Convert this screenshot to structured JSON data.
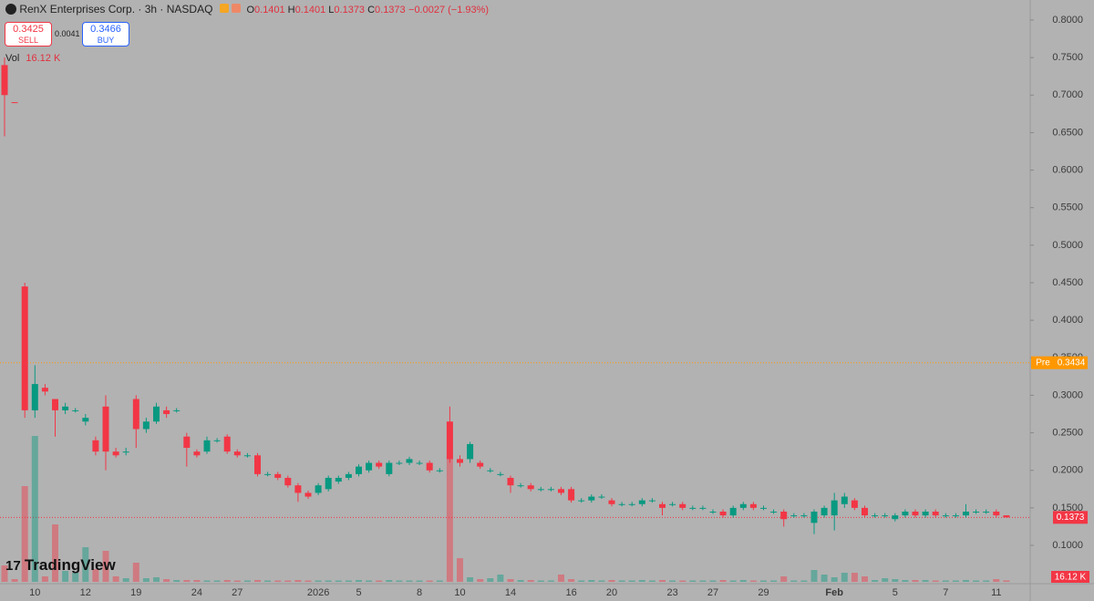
{
  "chart_data": {
    "type": "candlestick",
    "title": "RenX Enterprises Corp. · 3h · NASDAQ",
    "ohlc_legend": [
      {
        "label": "O",
        "value": 0.1401
      },
      {
        "label": "H",
        "value": 0.1401
      },
      {
        "label": "L",
        "value": 0.1373
      },
      {
        "label": "C",
        "value": 0.1373
      }
    ],
    "change_text": "−0.0027 (−1.93%)",
    "sell": {
      "price": 0.3425,
      "label": "SELL"
    },
    "spread": 0.0041,
    "buy": {
      "price": 0.3466,
      "label": "BUY"
    },
    "volume_title": "Vol",
    "volume_label": "16.12 K",
    "pre_label": "Pre",
    "pre_price": 0.3434,
    "last_price": 0.1373,
    "up_color": "#089981",
    "down_color": "#f23645",
    "pre_color": "#ff9800",
    "ylim": [
      0.049,
      0.8267
    ],
    "yticks": [
      {
        "value": 0.1,
        "label": "0.1000"
      },
      {
        "value": 0.15,
        "label": "0.1500"
      },
      {
        "value": 0.2,
        "label": "0.2000"
      },
      {
        "value": 0.25,
        "label": "0.2500"
      },
      {
        "value": 0.3,
        "label": "0.3000"
      },
      {
        "value": 0.35,
        "label": "0.3500"
      },
      {
        "value": 0.4,
        "label": "0.4000"
      },
      {
        "value": 0.45,
        "label": "0.4500"
      },
      {
        "value": 0.5,
        "label": "0.5000"
      },
      {
        "value": 0.55,
        "label": "0.5500"
      },
      {
        "value": 0.6,
        "label": "0.6000"
      },
      {
        "value": 0.65,
        "label": "0.6500"
      },
      {
        "value": 0.7,
        "label": "0.7000"
      },
      {
        "value": 0.75,
        "label": "0.7500"
      },
      {
        "value": 0.8,
        "label": "0.8000"
      }
    ],
    "volume_lim": [
      0,
      2000
    ],
    "grid": false,
    "categories": [
      null,
      null,
      null,
      "10",
      null,
      null,
      null,
      null,
      "12",
      null,
      null,
      null,
      null,
      "19",
      null,
      null,
      null,
      null,
      null,
      "24",
      null,
      null,
      null,
      "27",
      null,
      null,
      null,
      null,
      null,
      null,
      null,
      "2026",
      null,
      null,
      null,
      "5",
      null,
      null,
      null,
      null,
      null,
      "8",
      null,
      null,
      null,
      "10",
      null,
      null,
      null,
      null,
      "14",
      null,
      null,
      null,
      null,
      null,
      "16",
      null,
      null,
      null,
      "20",
      null,
      null,
      null,
      null,
      null,
      "23",
      null,
      null,
      null,
      "27",
      null,
      null,
      null,
      null,
      "29",
      null,
      null,
      null,
      null,
      null,
      null,
      "Feb",
      null,
      null,
      null,
      null,
      null,
      "5",
      null,
      null,
      null,
      null,
      "7",
      null,
      null,
      null,
      null,
      "11",
      null
    ],
    "open": [
      0.74,
      0.6905,
      0.445,
      0.28,
      0.31,
      0.295,
      0.28,
      0.28,
      0.265,
      0.24,
      0.285,
      0.225,
      0.225,
      0.295,
      0.255,
      0.265,
      0.28,
      0.28,
      0.245,
      0.225,
      0.225,
      0.24,
      0.245,
      0.225,
      0.22,
      0.22,
      0.195,
      0.195,
      0.19,
      0.18,
      0.17,
      0.17,
      0.175,
      0.185,
      0.19,
      0.195,
      0.2,
      0.21,
      0.195,
      0.21,
      0.21,
      0.21,
      0.21,
      0.2,
      0.265,
      0.215,
      0.215,
      0.21,
      0.2,
      0.195,
      0.19,
      0.18,
      0.18,
      0.175,
      0.175,
      0.175,
      0.175,
      0.16,
      0.16,
      0.165,
      0.16,
      0.155,
      0.155,
      0.155,
      0.16,
      0.155,
      0.155,
      0.155,
      0.15,
      0.15,
      0.145,
      0.145,
      0.14,
      0.15,
      0.155,
      0.15,
      0.145,
      0.145,
      0.14,
      0.14,
      0.13,
      0.14,
      0.14,
      0.155,
      0.16,
      0.15,
      0.14,
      0.14,
      0.135,
      0.14,
      0.145,
      0.14,
      0.145,
      0.14,
      0.14,
      0.14,
      0.145,
      0.145,
      0.145,
      0.1401
    ],
    "high": [
      0.75,
      0.6905,
      0.45,
      0.34,
      0.315,
      0.295,
      0.29,
      0.283,
      0.275,
      0.245,
      0.3,
      0.23,
      0.23,
      0.3,
      0.27,
      0.29,
      0.285,
      0.283,
      0.25,
      0.228,
      0.245,
      0.243,
      0.248,
      0.228,
      0.223,
      0.223,
      0.198,
      0.198,
      0.193,
      0.183,
      0.173,
      0.183,
      0.193,
      0.193,
      0.198,
      0.208,
      0.213,
      0.213,
      0.213,
      0.213,
      0.218,
      0.213,
      0.213,
      0.203,
      0.285,
      0.22,
      0.238,
      0.213,
      0.203,
      0.198,
      0.193,
      0.183,
      0.183,
      0.178,
      0.178,
      0.178,
      0.178,
      0.163,
      0.168,
      0.168,
      0.163,
      0.158,
      0.158,
      0.163,
      0.163,
      0.158,
      0.158,
      0.158,
      0.153,
      0.153,
      0.148,
      0.148,
      0.153,
      0.158,
      0.158,
      0.153,
      0.148,
      0.148,
      0.143,
      0.143,
      0.148,
      0.153,
      0.17,
      0.17,
      0.163,
      0.153,
      0.143,
      0.143,
      0.143,
      0.148,
      0.148,
      0.148,
      0.148,
      0.143,
      0.143,
      0.155,
      0.148,
      0.148,
      0.148,
      0.1401
    ],
    "low": [
      0.645,
      0.6895,
      0.27,
      0.27,
      0.3,
      0.245,
      0.275,
      0.277,
      0.26,
      0.22,
      0.2,
      0.217,
      0.22,
      0.23,
      0.25,
      0.262,
      0.27,
      0.277,
      0.205,
      0.217,
      0.222,
      0.237,
      0.222,
      0.217,
      0.217,
      0.192,
      0.192,
      0.187,
      0.177,
      0.158,
      0.162,
      0.167,
      0.172,
      0.182,
      0.187,
      0.192,
      0.197,
      0.202,
      0.192,
      0.207,
      0.207,
      0.207,
      0.197,
      0.197,
      0.21,
      0.205,
      0.21,
      0.202,
      0.197,
      0.192,
      0.17,
      0.177,
      0.172,
      0.172,
      0.172,
      0.167,
      0.157,
      0.157,
      0.157,
      0.162,
      0.152,
      0.152,
      0.152,
      0.152,
      0.157,
      0.14,
      0.152,
      0.147,
      0.147,
      0.147,
      0.142,
      0.137,
      0.137,
      0.147,
      0.147,
      0.147,
      0.142,
      0.125,
      0.137,
      0.137,
      0.115,
      0.137,
      0.12,
      0.15,
      0.147,
      0.137,
      0.137,
      0.137,
      0.132,
      0.137,
      0.137,
      0.137,
      0.137,
      0.137,
      0.137,
      0.137,
      0.142,
      0.142,
      0.137,
      0.1373
    ],
    "close": [
      0.7,
      0.6895,
      0.28,
      0.315,
      0.305,
      0.28,
      0.285,
      0.28,
      0.27,
      0.225,
      0.225,
      0.22,
      0.225,
      0.255,
      0.265,
      0.285,
      0.275,
      0.28,
      0.23,
      0.22,
      0.24,
      0.24,
      0.225,
      0.22,
      0.22,
      0.195,
      0.195,
      0.19,
      0.18,
      0.17,
      0.165,
      0.18,
      0.19,
      0.19,
      0.195,
      0.205,
      0.21,
      0.205,
      0.21,
      0.21,
      0.215,
      0.21,
      0.2,
      0.2,
      0.215,
      0.21,
      0.235,
      0.205,
      0.2,
      0.195,
      0.18,
      0.18,
      0.175,
      0.175,
      0.175,
      0.17,
      0.16,
      0.16,
      0.165,
      0.165,
      0.155,
      0.155,
      0.155,
      0.16,
      0.16,
      0.15,
      0.155,
      0.15,
      0.15,
      0.15,
      0.145,
      0.14,
      0.15,
      0.155,
      0.15,
      0.15,
      0.145,
      0.135,
      0.14,
      0.14,
      0.145,
      0.15,
      0.16,
      0.165,
      0.15,
      0.14,
      0.14,
      0.14,
      0.14,
      0.145,
      0.14,
      0.145,
      0.14,
      0.14,
      0.14,
      0.145,
      0.145,
      0.145,
      0.14,
      0.1373
    ],
    "volume": [
      180,
      30,
      1050,
      1600,
      60,
      630,
      120,
      100,
      380,
      140,
      340,
      60,
      40,
      210,
      40,
      50,
      30,
      20,
      20,
      20,
      15,
      15,
      20,
      15,
      15,
      20,
      15,
      15,
      15,
      20,
      15,
      15,
      15,
      15,
      15,
      20,
      15,
      15,
      20,
      15,
      15,
      15,
      15,
      15,
      1360,
      260,
      50,
      30,
      40,
      80,
      30,
      20,
      20,
      15,
      15,
      80,
      30,
      15,
      20,
      15,
      20,
      15,
      15,
      20,
      15,
      20,
      15,
      15,
      15,
      15,
      15,
      20,
      15,
      20,
      15,
      15,
      15,
      60,
      15,
      15,
      130,
      80,
      50,
      100,
      100,
      60,
      20,
      40,
      30,
      20,
      20,
      20,
      15,
      15,
      15,
      20,
      15,
      15,
      30,
      16.12
    ]
  },
  "branding": "TradingView"
}
